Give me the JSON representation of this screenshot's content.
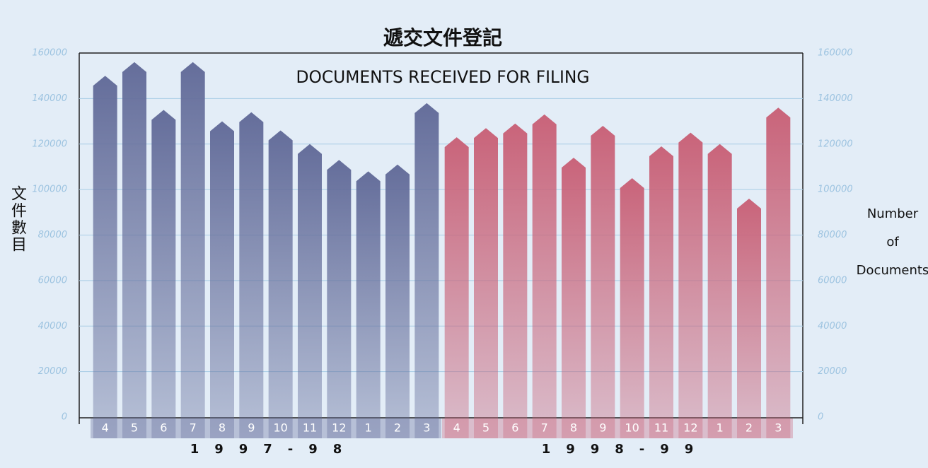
{
  "chart_data": {
    "type": "bar",
    "title": "遞交文件登記",
    "subtitle": "DOCUMENTS RECEIVED FOR FILING",
    "ylabel": "文件數目",
    "y2label": [
      "Number",
      "of",
      "Documents"
    ],
    "ylim": [
      0,
      160000
    ],
    "yticks": [
      0,
      20000,
      40000,
      60000,
      80000,
      100000,
      120000,
      140000,
      160000
    ],
    "y2lim": [
      0,
      160000
    ],
    "y2ticks": [
      0,
      20000,
      40000,
      60000,
      80000,
      100000,
      120000,
      140000,
      160000
    ],
    "grid": true,
    "groups": [
      {
        "name": "1997-98",
        "color": "#656e9b",
        "categories": [
          "4",
          "5",
          "6",
          "7",
          "8",
          "9",
          "10",
          "11",
          "12",
          "1",
          "2",
          "3"
        ],
        "values": [
          150000,
          156000,
          135000,
          156000,
          130000,
          134000,
          126000,
          120000,
          113000,
          108000,
          111000,
          138000
        ]
      },
      {
        "name": "1998-99",
        "color": "#c9647a",
        "categories": [
          "4",
          "5",
          "6",
          "7",
          "8",
          "9",
          "10",
          "11",
          "12",
          "1",
          "2",
          "3"
        ],
        "values": [
          123000,
          127000,
          129000,
          133000,
          114000,
          128000,
          105000,
          119000,
          125000,
          120000,
          96000,
          136000
        ]
      }
    ]
  }
}
